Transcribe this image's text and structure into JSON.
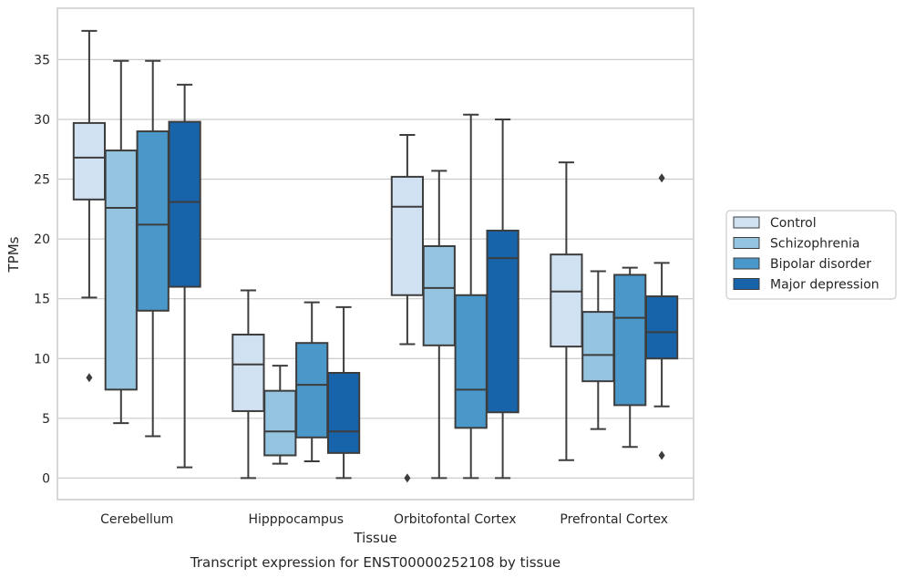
{
  "chart_data": {
    "type": "box",
    "title": "",
    "caption": "Transcript expression for ENST00000252108 by tissue",
    "xlabel": "Tissue",
    "ylabel": "TPMs",
    "ylim": [
      -1.8,
      39.3
    ],
    "yticks": [
      0,
      5,
      10,
      15,
      20,
      25,
      30,
      35
    ],
    "grid": "horizontal",
    "legend_position": "right",
    "categories": [
      "Cerebellum",
      "Hipppocampus",
      "Orbitofontal Cortex",
      "Prefrontal Cortex"
    ],
    "series": [
      {
        "name": "Control",
        "color": "#d0e1f2",
        "boxes": [
          {
            "whislo": 15.1,
            "q1": 23.3,
            "med": 26.8,
            "q3": 29.7,
            "whishi": 37.4,
            "fliers": [
              8.4
            ]
          },
          {
            "whislo": 0.0,
            "q1": 5.6,
            "med": 9.5,
            "q3": 12.0,
            "whishi": 15.7,
            "fliers": []
          },
          {
            "whislo": 11.2,
            "q1": 15.3,
            "med": 22.7,
            "q3": 25.2,
            "whishi": 28.7,
            "fliers": [
              0.0
            ]
          },
          {
            "whislo": 1.5,
            "q1": 11.0,
            "med": 15.6,
            "q3": 18.7,
            "whishi": 26.4,
            "fliers": []
          }
        ]
      },
      {
        "name": "Schizophrenia",
        "color": "#94c4df",
        "boxes": [
          {
            "whislo": 4.6,
            "q1": 7.4,
            "med": 22.6,
            "q3": 27.4,
            "whishi": 34.9,
            "fliers": []
          },
          {
            "whislo": 1.2,
            "q1": 1.9,
            "med": 3.9,
            "q3": 7.3,
            "whishi": 9.4,
            "fliers": []
          },
          {
            "whislo": 0.0,
            "q1": 11.1,
            "med": 15.9,
            "q3": 19.4,
            "whishi": 25.7,
            "fliers": []
          },
          {
            "whislo": 4.1,
            "q1": 8.1,
            "med": 10.3,
            "q3": 13.9,
            "whishi": 17.3,
            "fliers": []
          }
        ]
      },
      {
        "name": "Bipolar disorder",
        "color": "#4a98c9",
        "boxes": [
          {
            "whislo": 3.5,
            "q1": 14.0,
            "med": 21.2,
            "q3": 29.0,
            "whishi": 34.9,
            "fliers": []
          },
          {
            "whislo": 1.4,
            "q1": 3.4,
            "med": 7.8,
            "q3": 11.3,
            "whishi": 14.7,
            "fliers": []
          },
          {
            "whislo": 0.0,
            "q1": 4.2,
            "med": 7.4,
            "q3": 15.3,
            "whishi": 30.4,
            "fliers": []
          },
          {
            "whislo": 2.6,
            "q1": 6.1,
            "med": 13.4,
            "q3": 17.0,
            "whishi": 17.6,
            "fliers": []
          }
        ]
      },
      {
        "name": "Major depression",
        "color": "#1764ab",
        "boxes": [
          {
            "whislo": 0.9,
            "q1": 16.0,
            "med": 23.1,
            "q3": 29.8,
            "whishi": 32.9,
            "fliers": []
          },
          {
            "whislo": 0.0,
            "q1": 2.1,
            "med": 3.9,
            "q3": 8.8,
            "whishi": 14.3,
            "fliers": []
          },
          {
            "whislo": 0.0,
            "q1": 5.5,
            "med": 18.4,
            "q3": 20.7,
            "whishi": 30.0,
            "fliers": []
          },
          {
            "whislo": 6.0,
            "q1": 10.0,
            "med": 12.2,
            "q3": 15.2,
            "whishi": 18.0,
            "fliers": [
              25.1,
              1.9
            ]
          }
        ]
      }
    ]
  }
}
